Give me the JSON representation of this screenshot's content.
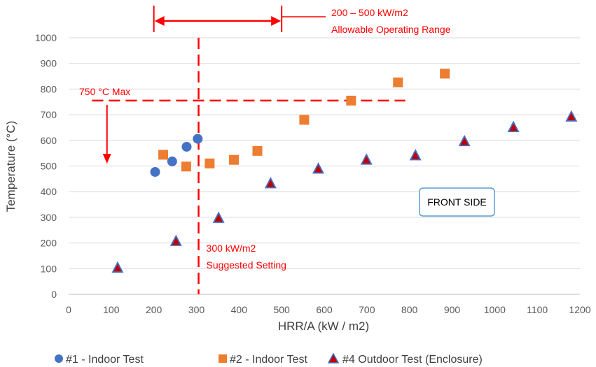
{
  "chart_data": {
    "type": "scatter",
    "xlabel": "HRR/A (kW / m2)",
    "ylabel": "Temperature (°C)",
    "xlim": [
      0,
      1200
    ],
    "ylim": [
      0,
      1000
    ],
    "x_ticks": [
      "0",
      "100",
      "200",
      "300",
      "400",
      "500",
      "600",
      "700",
      "800",
      "900",
      "1000",
      "1100",
      "1200"
    ],
    "y_ticks": [
      "0",
      "100",
      "200",
      "300",
      "400",
      "500",
      "600",
      "700",
      "800",
      "900",
      "1000"
    ],
    "grid": "horizontal",
    "legend_position": "bottom",
    "series": [
      {
        "name": "#1 - Indoor Test",
        "marker": "circle",
        "color": "#4472C4",
        "points": [
          [
            203,
            477
          ],
          [
            243,
            518
          ],
          [
            277,
            575
          ],
          [
            303,
            606
          ]
        ]
      },
      {
        "name": "#2 - Indoor Test",
        "marker": "square",
        "color": "#ED7D31",
        "points": [
          [
            222,
            544
          ],
          [
            276,
            498
          ],
          [
            331,
            510
          ],
          [
            388,
            524
          ],
          [
            443,
            559
          ],
          [
            553,
            680
          ],
          [
            663,
            755
          ],
          [
            773,
            826
          ],
          [
            883,
            860
          ]
        ]
      },
      {
        "name": "#4 Outdoor Test (Enclosure)",
        "marker": "triangle",
        "color": "#4472C4",
        "fill": "#C00000",
        "points": [
          [
            115,
            103
          ],
          [
            252,
            207
          ],
          [
            352,
            297
          ],
          [
            474,
            432
          ],
          [
            586,
            489
          ],
          [
            699,
            524
          ],
          [
            814,
            541
          ],
          [
            929,
            596
          ],
          [
            1044,
            651
          ],
          [
            1180,
            692
          ]
        ]
      }
    ],
    "annotations": {
      "color": "#FF0000",
      "max_label": "750 °C Max",
      "max_line": {
        "y": 755,
        "x_from": 55,
        "x_to": 790
      },
      "max_arrow": {
        "x": 90,
        "y_from": 755,
        "y_to": 515
      },
      "suggested_line": 1,
      "suggested_label_1": "300 kW/m2",
      "suggested_label_2": "Suggested Setting",
      "suggested_x": 305,
      "range_label_1": "200 – 500 kW/m2",
      "range_label_2": "Allowable Operating Range",
      "range_from": 200,
      "range_to": 500,
      "box_label": "FRONT SIDE"
    }
  }
}
